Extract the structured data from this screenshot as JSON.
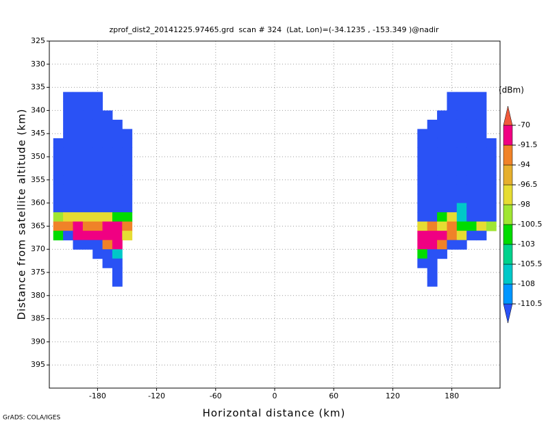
{
  "chart_data": {
    "type": "heatmap",
    "title": "zprof_dist2_20141225.97465.grd  scan # 324  (Lat, Lon)=(-34.1235 , -153.349 )@nadir",
    "xlabel": "Horizontal distance (km)",
    "ylabel": "Distance from satellite altitude (km)",
    "credit": "GrADS: COLA/IGES",
    "xlim": [
      -229,
      229
    ],
    "ylim": [
      400,
      325
    ],
    "xticks": [
      -180,
      -120,
      -60,
      0,
      60,
      120,
      180
    ],
    "yticks": [
      325,
      330,
      335,
      340,
      345,
      350,
      355,
      360,
      365,
      370,
      375,
      380,
      385,
      390,
      395
    ],
    "grid": true,
    "colorbar": {
      "label": "(dBm)",
      "levels": [
        -110.5,
        -108,
        -105.5,
        -103,
        -100.5,
        -98,
        -96.5,
        -94,
        -91.5,
        -70
      ],
      "colors": [
        "#2a52f5",
        "#0096ff",
        "#00c8c8",
        "#00d28c",
        "#00dc00",
        "#a0e632",
        "#e6dc32",
        "#e6af2d",
        "#f08228",
        "#f00082",
        "#f05a3c"
      ]
    },
    "y_edges": [
      336,
      338,
      340,
      342,
      344,
      346,
      348,
      350,
      352,
      354,
      356,
      358,
      360,
      362,
      364,
      366,
      368,
      370,
      372,
      374,
      376,
      378
    ],
    "swaths": [
      {
        "x_edges": [
          -225,
          -215,
          -205,
          -195,
          -185,
          -175,
          -165,
          -155,
          -145
        ],
        "values": [
          [
            null,
            -115,
            -115,
            -115,
            -115,
            null,
            null,
            null
          ],
          [
            null,
            -115,
            -115,
            -115,
            -115,
            null,
            null,
            null
          ],
          [
            null,
            -115,
            -115,
            -115,
            -115,
            -115,
            null,
            null
          ],
          [
            null,
            -115,
            -115,
            -115,
            -115,
            -115,
            -115,
            null
          ],
          [
            null,
            -115,
            -115,
            -115,
            -115,
            -115,
            -115,
            -115
          ],
          [
            -115,
            -115,
            -115,
            -115,
            -115,
            -115,
            -115,
            -115
          ],
          [
            -115,
            -115,
            -115,
            -115,
            -115,
            -115,
            -115,
            -115
          ],
          [
            -115,
            -115,
            -115,
            -115,
            -115,
            -115,
            -115,
            -115
          ],
          [
            -115,
            -115,
            -115,
            -115,
            -115,
            -115,
            -115,
            -115
          ],
          [
            -115,
            -115,
            -115,
            -115,
            -115,
            -115,
            -115,
            -115
          ],
          [
            -115,
            -115,
            -115,
            -115,
            -115,
            -115,
            -115,
            -115
          ],
          [
            -115,
            -115,
            -115,
            -115,
            -115,
            -115,
            -115,
            -115
          ],
          [
            -115,
            -115,
            -115,
            -115,
            -115,
            -115,
            -115,
            -115
          ],
          [
            -100,
            -97,
            -97,
            -97,
            -97,
            -97,
            -102,
            -102
          ],
          [
            -93,
            -93,
            -85,
            -93,
            -93,
            -85,
            -85,
            -93
          ],
          [
            -102,
            -115,
            -85,
            -85,
            -85,
            -85,
            -85,
            -97
          ],
          [
            null,
            null,
            -115,
            -115,
            -115,
            -93,
            -85,
            null
          ],
          [
            null,
            null,
            null,
            null,
            -115,
            -115,
            -107,
            null
          ],
          [
            null,
            null,
            null,
            null,
            null,
            -115,
            -115,
            null
          ],
          [
            null,
            null,
            null,
            null,
            null,
            null,
            -115,
            null
          ],
          [
            null,
            null,
            null,
            null,
            null,
            null,
            -115,
            null
          ]
        ]
      },
      {
        "x_edges": [
          145,
          155,
          165,
          175,
          185,
          195,
          205,
          215,
          225
        ],
        "values": [
          [
            null,
            null,
            null,
            -115,
            -115,
            -115,
            -115,
            null
          ],
          [
            null,
            null,
            null,
            -115,
            -115,
            -115,
            -115,
            null
          ],
          [
            null,
            null,
            -115,
            -115,
            -115,
            -115,
            -115,
            null
          ],
          [
            null,
            -115,
            -115,
            -115,
            -115,
            -115,
            -115,
            null
          ],
          [
            -115,
            -115,
            -115,
            -115,
            -115,
            -115,
            -115,
            null
          ],
          [
            -115,
            -115,
            -115,
            -115,
            -115,
            -115,
            -115,
            -115
          ],
          [
            -115,
            -115,
            -115,
            -115,
            -115,
            -115,
            -115,
            -115
          ],
          [
            -115,
            -115,
            -115,
            -115,
            -115,
            -115,
            -115,
            -115
          ],
          [
            -115,
            -115,
            -115,
            -115,
            -115,
            -115,
            -115,
            -115
          ],
          [
            -115,
            -115,
            -115,
            -115,
            -115,
            -115,
            -115,
            -115
          ],
          [
            -115,
            -115,
            -115,
            -115,
            -115,
            -115,
            -115,
            -115
          ],
          [
            -115,
            -115,
            -115,
            -115,
            -115,
            -115,
            -115,
            -115
          ],
          [
            -115,
            -115,
            -115,
            -115,
            -107,
            -115,
            -115,
            -115
          ],
          [
            -115,
            -115,
            -102,
            -97,
            -107,
            -115,
            -115,
            -115
          ],
          [
            -97,
            -93,
            -97,
            -93,
            -102,
            -102,
            -97,
            -100
          ],
          [
            -85,
            -85,
            -85,
            -93,
            -97,
            -115,
            -115,
            null
          ],
          [
            -85,
            -85,
            -93,
            -115,
            -115,
            null,
            null,
            null
          ],
          [
            -102,
            -115,
            -115,
            null,
            null,
            null,
            null,
            null
          ],
          [
            -115,
            -115,
            null,
            null,
            null,
            null,
            null,
            null
          ],
          [
            null,
            -115,
            null,
            null,
            null,
            null,
            null,
            null
          ],
          [
            null,
            -115,
            null,
            null,
            null,
            null,
            null,
            null
          ]
        ]
      }
    ]
  }
}
